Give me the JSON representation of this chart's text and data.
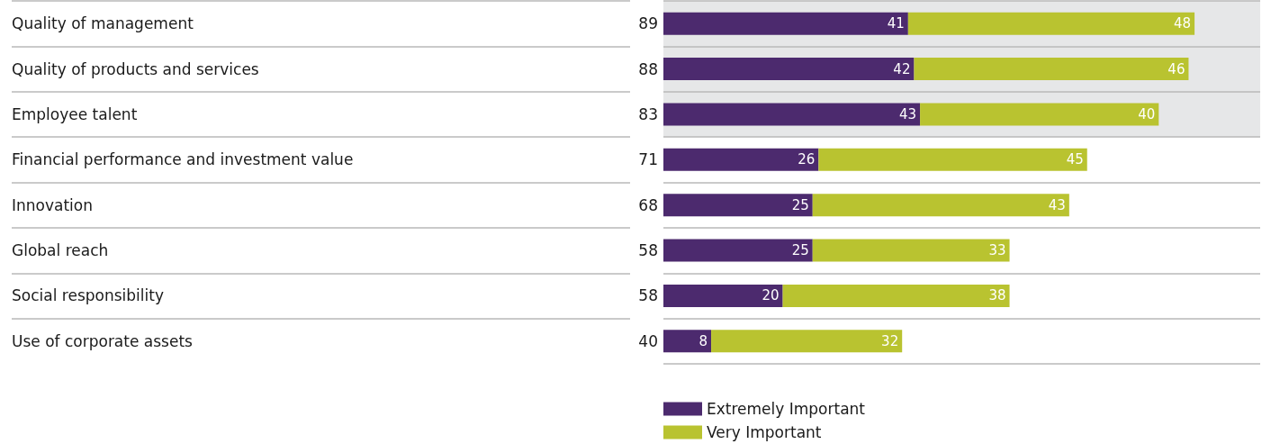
{
  "chart_data": {
    "type": "bar",
    "orientation": "horizontal",
    "stacked": true,
    "categories": [
      "Quality of management",
      "Quality of products and services",
      "Employee talent",
      "Financial performance and investment value",
      "Innovation",
      "Global reach",
      "Social responsibility",
      "Use of corporate assets"
    ],
    "series": [
      {
        "name": "Extremely Important",
        "color": "#4c2a6e",
        "values": [
          41,
          42,
          43,
          26,
          25,
          25,
          20,
          8
        ]
      },
      {
        "name": "Very Important",
        "color": "#b9c330",
        "values": [
          48,
          46,
          40,
          45,
          43,
          33,
          38,
          32
        ]
      }
    ],
    "totals": [
      "89",
      "88",
      "83",
      "71",
      "68",
      "58",
      "58",
      "40"
    ],
    "data_labels": true,
    "legend": "bottom",
    "grid": "y",
    "tick_labels": "y",
    "bands": [
      {
        "axis": "y",
        "from": "Quality of management",
        "to": "Employee talent",
        "color": "#e6e7e8"
      }
    ]
  }
}
